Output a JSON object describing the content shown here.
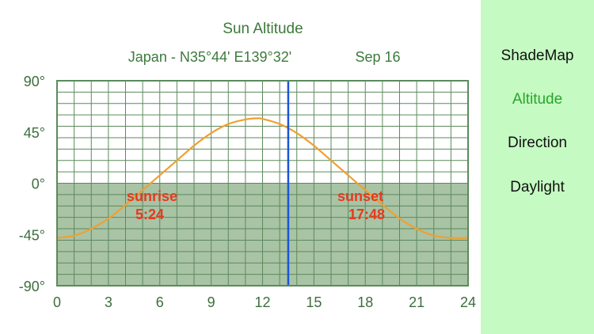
{
  "colors": {
    "title_text": "#3b7a3b",
    "axis_text": "#3d6e3d",
    "grid": "#5c8a5c",
    "night_fill": "#a9c3a5",
    "curve": "#f0a030",
    "marker": "#1a55d6",
    "sun_labels": "#e63a1e",
    "panel_bg": "#c5fbc2",
    "nav_active": "#2aa52a",
    "nav_default": "#111111"
  },
  "header": {
    "location": "Japan - N35°44'  E139°32'",
    "date": "Sep 16"
  },
  "annotations": {
    "sunrise_label": "sunrise",
    "sunrise_time": "5:24",
    "sunset_label": "sunset",
    "sunset_time": "17:48"
  },
  "sidebar": {
    "items": [
      {
        "label": "ShadeMap",
        "active": false
      },
      {
        "label": "Altitude",
        "active": true
      },
      {
        "label": "Direction",
        "active": false
      },
      {
        "label": "Daylight",
        "active": false
      }
    ]
  },
  "chart_data": {
    "type": "line",
    "title": "Sun Altitude",
    "x_ticks": [
      "0",
      "3",
      "6",
      "9",
      "12",
      "15",
      "18",
      "21",
      "24"
    ],
    "y_ticks": [
      "90°",
      "45°",
      "0°",
      "-45°",
      "-90°"
    ],
    "xlim": [
      0,
      24
    ],
    "ylim": [
      -90,
      90
    ],
    "grid": true,
    "x_minor_step": 1,
    "y_minor_step": 10,
    "night_region": [
      -90,
      0
    ],
    "current_time": 13.5,
    "series": [
      {
        "x": [
          0,
          1,
          2,
          3,
          4,
          5,
          6,
          7,
          8,
          9,
          10,
          11,
          11.67,
          12,
          13,
          14,
          15,
          16,
          17,
          18,
          19,
          20,
          21,
          22,
          23,
          24
        ],
        "y": [
          -48,
          -46,
          -40,
          -31,
          -19,
          -6,
          7,
          20,
          33,
          44,
          52,
          56,
          57,
          56.5,
          52,
          44,
          33,
          20,
          7,
          -6,
          -19,
          -31,
          -40,
          -46,
          -48,
          -48
        ]
      }
    ]
  }
}
